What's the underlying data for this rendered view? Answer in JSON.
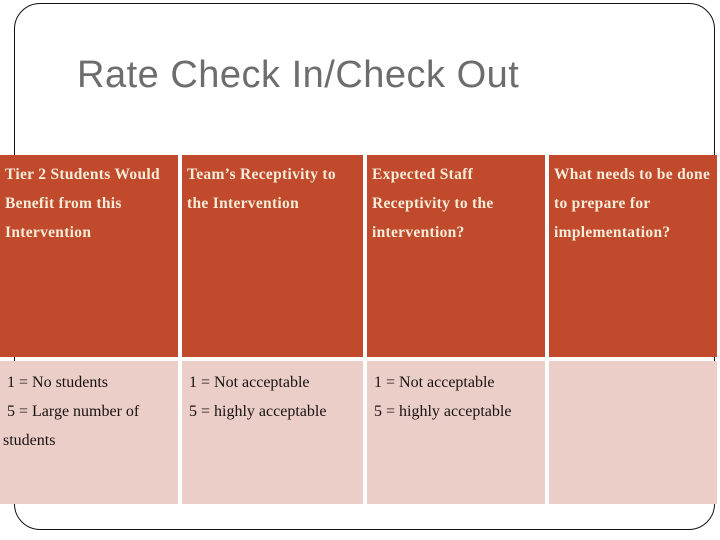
{
  "slide": {
    "title": "Rate Check In/Check Out"
  },
  "table": {
    "columns": [
      {
        "header": "Tier 2 Students Would Benefit from this Intervention",
        "header_lines": [
          "Tier 2 Students Would",
          "Benefit from this",
          "Intervention"
        ],
        "body": " 1 = No students  5 = Large number of students",
        "body_lines": [
          " 1 = No students",
          " 5 = Large number of",
          "students"
        ]
      },
      {
        "header": "Team’s Receptivity to the Intervention",
        "header_lines": [
          "Team’s Receptivity to",
          "the Intervention"
        ],
        "body": " 1 = Not acceptable  5 = highly acceptable",
        "body_lines": [
          " 1 = Not acceptable",
          " 5 = highly acceptable"
        ]
      },
      {
        "header": "Expected Staff Receptivity to the intervention?",
        "header_lines": [
          "Expected Staff",
          "Receptivity to the",
          "intervention?"
        ],
        "body": " 1 = Not acceptable  5 = highly acceptable",
        "body_lines": [
          " 1 = Not acceptable",
          " 5 = highly acceptable"
        ]
      },
      {
        "header": "What needs to be done to prepare for implementation?",
        "header_lines": [
          "What needs to be done",
          "to prepare for",
          "implementation?"
        ],
        "body": "",
        "body_lines": []
      }
    ]
  },
  "colors": {
    "header_background": "#C04A2B",
    "body_background": "#ECCEC8",
    "header_text": "#F3ECD9",
    "body_text": "#161210",
    "title_text": "#6D6D6D",
    "frame_border": "#101010",
    "slide_background": "#FFFFFF"
  }
}
